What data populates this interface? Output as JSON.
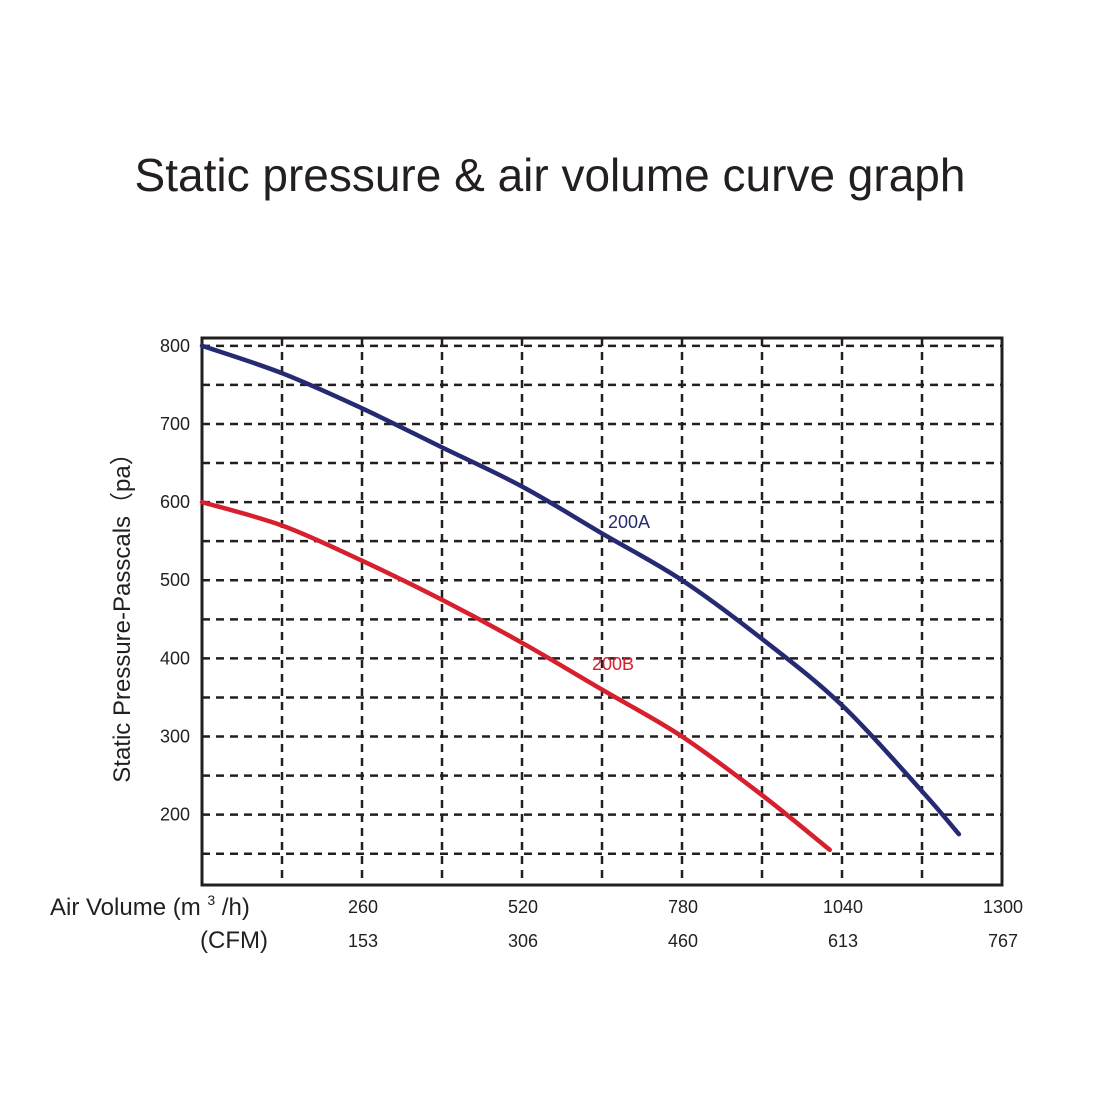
{
  "chart_data": {
    "type": "line",
    "title": "Static pressure & air volume curve graph",
    "ylabel": "Static Pressure-Passcals（pa）",
    "xlabel_main": "Air Volume",
    "xlabel_unit_prefix": "(m",
    "xlabel_unit_sup": "3",
    "xlabel_unit_suffix": "/h)",
    "xlabel_secondary": "(CFM)",
    "xlim": [
      0,
      1300
    ],
    "ylim": [
      110,
      810
    ],
    "x_ticks": [
      260,
      520,
      780,
      1040,
      1300
    ],
    "x_tick_labels": [
      "260",
      "520",
      "780",
      "1040",
      "1300"
    ],
    "cfm_tick_labels": [
      "153",
      "306",
      "460",
      "613",
      "767"
    ],
    "y_ticks": [
      800,
      700,
      600,
      500,
      400,
      300,
      200
    ],
    "y_tick_labels": [
      "800",
      "700",
      "600",
      "500",
      "400",
      "300",
      "200"
    ],
    "grid": true,
    "series": [
      {
        "name": "200A",
        "color": "#262a72",
        "x": [
          0,
          130,
          260,
          390,
          520,
          650,
          780,
          910,
          1040,
          1170,
          1230
        ],
        "y": [
          800,
          765,
          720,
          670,
          620,
          560,
          500,
          425,
          340,
          230,
          175
        ]
      },
      {
        "name": "200B",
        "color": "#d6202e",
        "x": [
          0,
          130,
          260,
          390,
          520,
          650,
          780,
          910,
          1020
        ],
        "y": [
          600,
          570,
          525,
          475,
          420,
          360,
          300,
          225,
          155
        ]
      }
    ]
  }
}
